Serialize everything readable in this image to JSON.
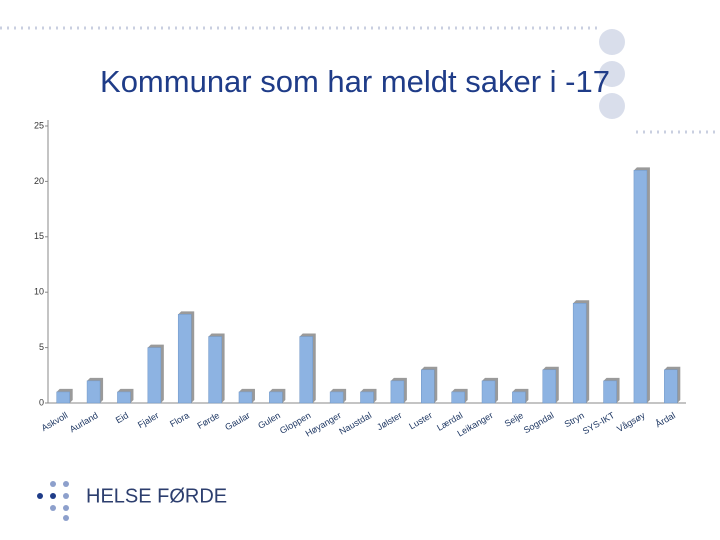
{
  "chart_data": {
    "type": "bar",
    "title": "Kommunar som har meldt saker i -17",
    "categories": [
      "Askvoll",
      "Aurland",
      "Eid",
      "Fjaler",
      "Flora",
      "Førde",
      "Gaular",
      "Gulen",
      "Gloppen",
      "Høyanger",
      "Naustdal",
      "Jølster",
      "Luster",
      "Lærdal",
      "Leikanger",
      "Selje",
      "Sogndal",
      "Stryn",
      "SYS-IKT",
      "Vågsøy",
      "Årdal"
    ],
    "values": [
      1,
      2,
      1,
      5,
      8,
      6,
      1,
      1,
      6,
      1,
      1,
      2,
      3,
      1,
      2,
      1,
      3,
      9,
      2,
      21,
      3
    ],
    "color": "#8db3e2",
    "ylim": [
      0,
      25
    ],
    "yticks": [
      0,
      5,
      10,
      15,
      20,
      25
    ],
    "grid": false
  },
  "logo": "HELSE FØRDE"
}
